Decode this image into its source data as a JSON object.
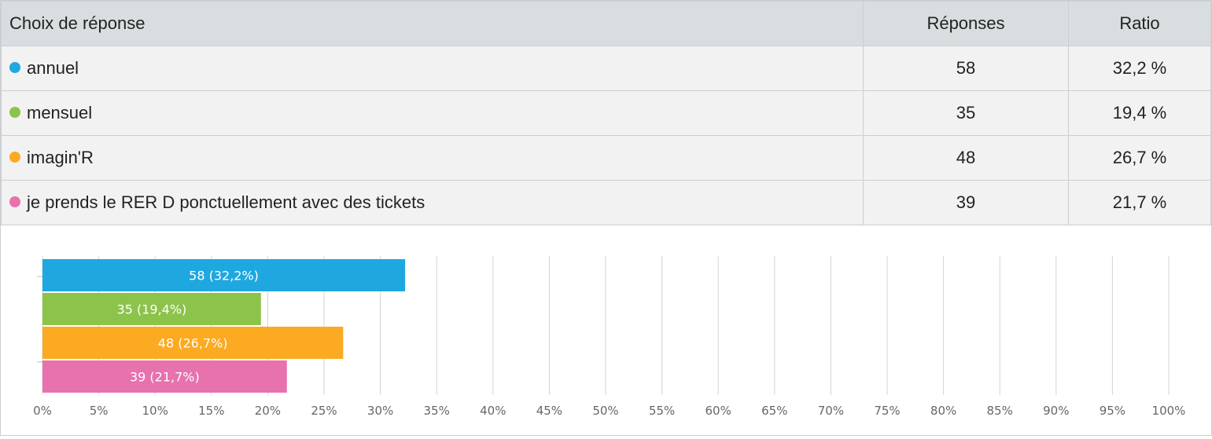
{
  "table": {
    "headers": {
      "choice": "Choix de réponse",
      "responses": "Réponses",
      "ratio": "Ratio"
    },
    "rows": [
      {
        "label": "annuel",
        "responses": "58",
        "ratio": "32,2 %",
        "color": "#1fa8e0"
      },
      {
        "label": "mensuel",
        "responses": "35",
        "ratio": "19,4 %",
        "color": "#8cc34a"
      },
      {
        "label": "imagin'R",
        "responses": "48",
        "ratio": "26,7 %",
        "color": "#fbaa22"
      },
      {
        "label": "je prends le RER D ponctuellement avec des tickets",
        "responses": "39",
        "ratio": "21,7 %",
        "color": "#e772ad"
      }
    ]
  },
  "chart_data": {
    "type": "bar",
    "orientation": "horizontal",
    "categories": [
      "annuel",
      "mensuel",
      "imagin'R",
      "je prends le RER D ponctuellement avec des tickets"
    ],
    "values": [
      32.2,
      19.4,
      26.7,
      21.7
    ],
    "counts": [
      58,
      35,
      48,
      39
    ],
    "data_labels": [
      "58 (32,2%)",
      "35 (19,4%)",
      "48 (26,7%)",
      "39 (21,7%)"
    ],
    "colors": [
      "#1fa8e0",
      "#8cc34a",
      "#fbaa22",
      "#e772ad"
    ],
    "xlim": [
      0,
      100
    ],
    "xticks": [
      "0%",
      "5%",
      "10%",
      "15%",
      "20%",
      "25%",
      "30%",
      "35%",
      "40%",
      "45%",
      "50%",
      "55%",
      "60%",
      "65%",
      "70%",
      "75%",
      "80%",
      "85%",
      "90%",
      "95%",
      "100%"
    ],
    "grid": true,
    "legend": "none"
  }
}
